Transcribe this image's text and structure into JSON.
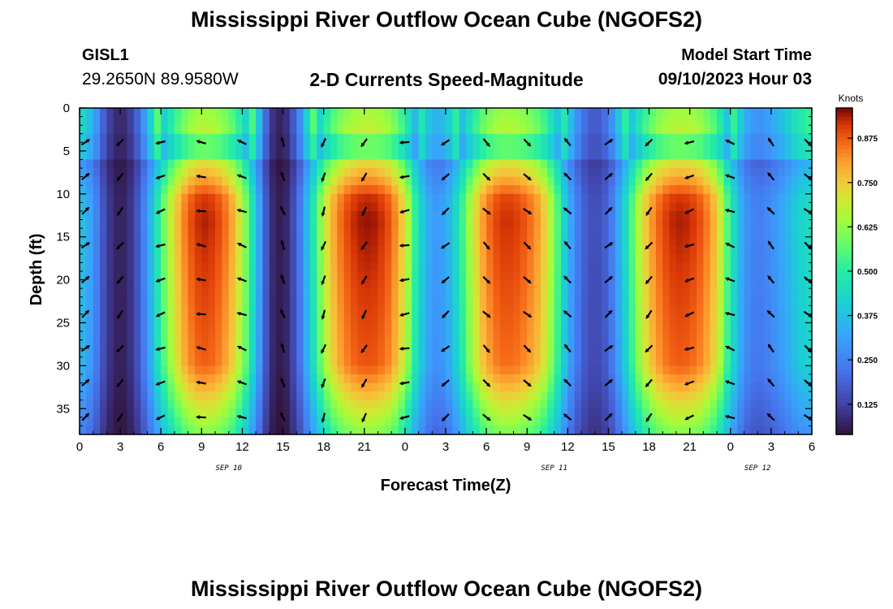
{
  "page": {
    "title": "Mississippi River Outflow Ocean Cube (NGOFS2)",
    "station": {
      "name": "GISL1",
      "coords": "29.2650N  89.9580W"
    },
    "subtitle": "2-D Currents Speed-Magnitude",
    "model_start": {
      "label": "Model Start Time",
      "value": "09/10/2023 Hour 03"
    },
    "footer_title": "Mississippi River Outflow Ocean Cube (NGOFS2)"
  },
  "chart_data": {
    "type": "heatmap",
    "title": "2-D Currents Speed-Magnitude",
    "xlabel": "Forecast Time(Z)",
    "ylabel": "Depth (ft)",
    "x_ticks": [
      "0",
      "3",
      "6",
      "9",
      "12",
      "15",
      "18",
      "21",
      "0",
      "3",
      "6",
      "9",
      "12",
      "15",
      "18",
      "21",
      "0",
      "3",
      "6"
    ],
    "x_range_hours": [
      0,
      54
    ],
    "date_labels": [
      {
        "text": "SEP 10",
        "hour": 11
      },
      {
        "text": "SEP 11",
        "hour": 35
      },
      {
        "text": "SEP 12",
        "hour": 50
      }
    ],
    "y_ticks": [
      0,
      5,
      10,
      15,
      20,
      25,
      30,
      35
    ],
    "y_range_ft": [
      0,
      38
    ],
    "colorbar": {
      "units": "Knots",
      "range": [
        0.04,
        0.96
      ],
      "ticks": [
        "0.125",
        "0.250",
        "0.375",
        "0.500",
        "0.625",
        "0.750",
        "0.875"
      ],
      "tick_values": [
        0.125,
        0.25,
        0.375,
        0.5,
        0.625,
        0.75,
        0.875
      ]
    },
    "speed_by_hour": [
      [
        0,
        0.4
      ],
      [
        1,
        0.3
      ],
      [
        2,
        0.12
      ],
      [
        3,
        0.06
      ],
      [
        4,
        0.12
      ],
      [
        5,
        0.3
      ],
      [
        6,
        0.55
      ],
      [
        7,
        0.74
      ],
      [
        8,
        0.88
      ],
      [
        9,
        0.94
      ],
      [
        10,
        0.92
      ],
      [
        11,
        0.84
      ],
      [
        12,
        0.68
      ],
      [
        13,
        0.4
      ],
      [
        14,
        0.1
      ],
      [
        15,
        0.05
      ],
      [
        16,
        0.18
      ],
      [
        17,
        0.42
      ],
      [
        18,
        0.68
      ],
      [
        19,
        0.84
      ],
      [
        20,
        0.92
      ],
      [
        21,
        0.95
      ],
      [
        22,
        0.94
      ],
      [
        23,
        0.88
      ],
      [
        24,
        0.72
      ],
      [
        25,
        0.45
      ],
      [
        26,
        0.3
      ],
      [
        27,
        0.32
      ],
      [
        28,
        0.48
      ],
      [
        29,
        0.7
      ],
      [
        30,
        0.85
      ],
      [
        31,
        0.92
      ],
      [
        32,
        0.92
      ],
      [
        33,
        0.88
      ],
      [
        34,
        0.8
      ],
      [
        35,
        0.62
      ],
      [
        36,
        0.36
      ],
      [
        37,
        0.2
      ],
      [
        38,
        0.14
      ],
      [
        39,
        0.2
      ],
      [
        40,
        0.38
      ],
      [
        41,
        0.62
      ],
      [
        42,
        0.8
      ],
      [
        43,
        0.9
      ],
      [
        44,
        0.94
      ],
      [
        45,
        0.93
      ],
      [
        46,
        0.88
      ],
      [
        47,
        0.76
      ],
      [
        48,
        0.5
      ],
      [
        49,
        0.3
      ],
      [
        50,
        0.24
      ],
      [
        51,
        0.28
      ],
      [
        52,
        0.34
      ],
      [
        53,
        0.42
      ],
      [
        54,
        0.46
      ]
    ],
    "vector_depths_ft": [
      4,
      8,
      12,
      16,
      20,
      24,
      28,
      32,
      36
    ],
    "vector_hours": [
      0,
      3,
      6,
      9,
      12,
      15,
      18,
      21,
      24,
      27,
      30,
      33,
      36,
      39,
      42,
      45,
      48,
      51,
      54
    ],
    "vector_directions_deg": [
      40,
      230,
      200,
      170,
      160,
      110,
      250,
      240,
      190,
      220,
      315,
      320,
      135,
      40,
      230,
      200,
      160,
      130,
      320
    ]
  }
}
